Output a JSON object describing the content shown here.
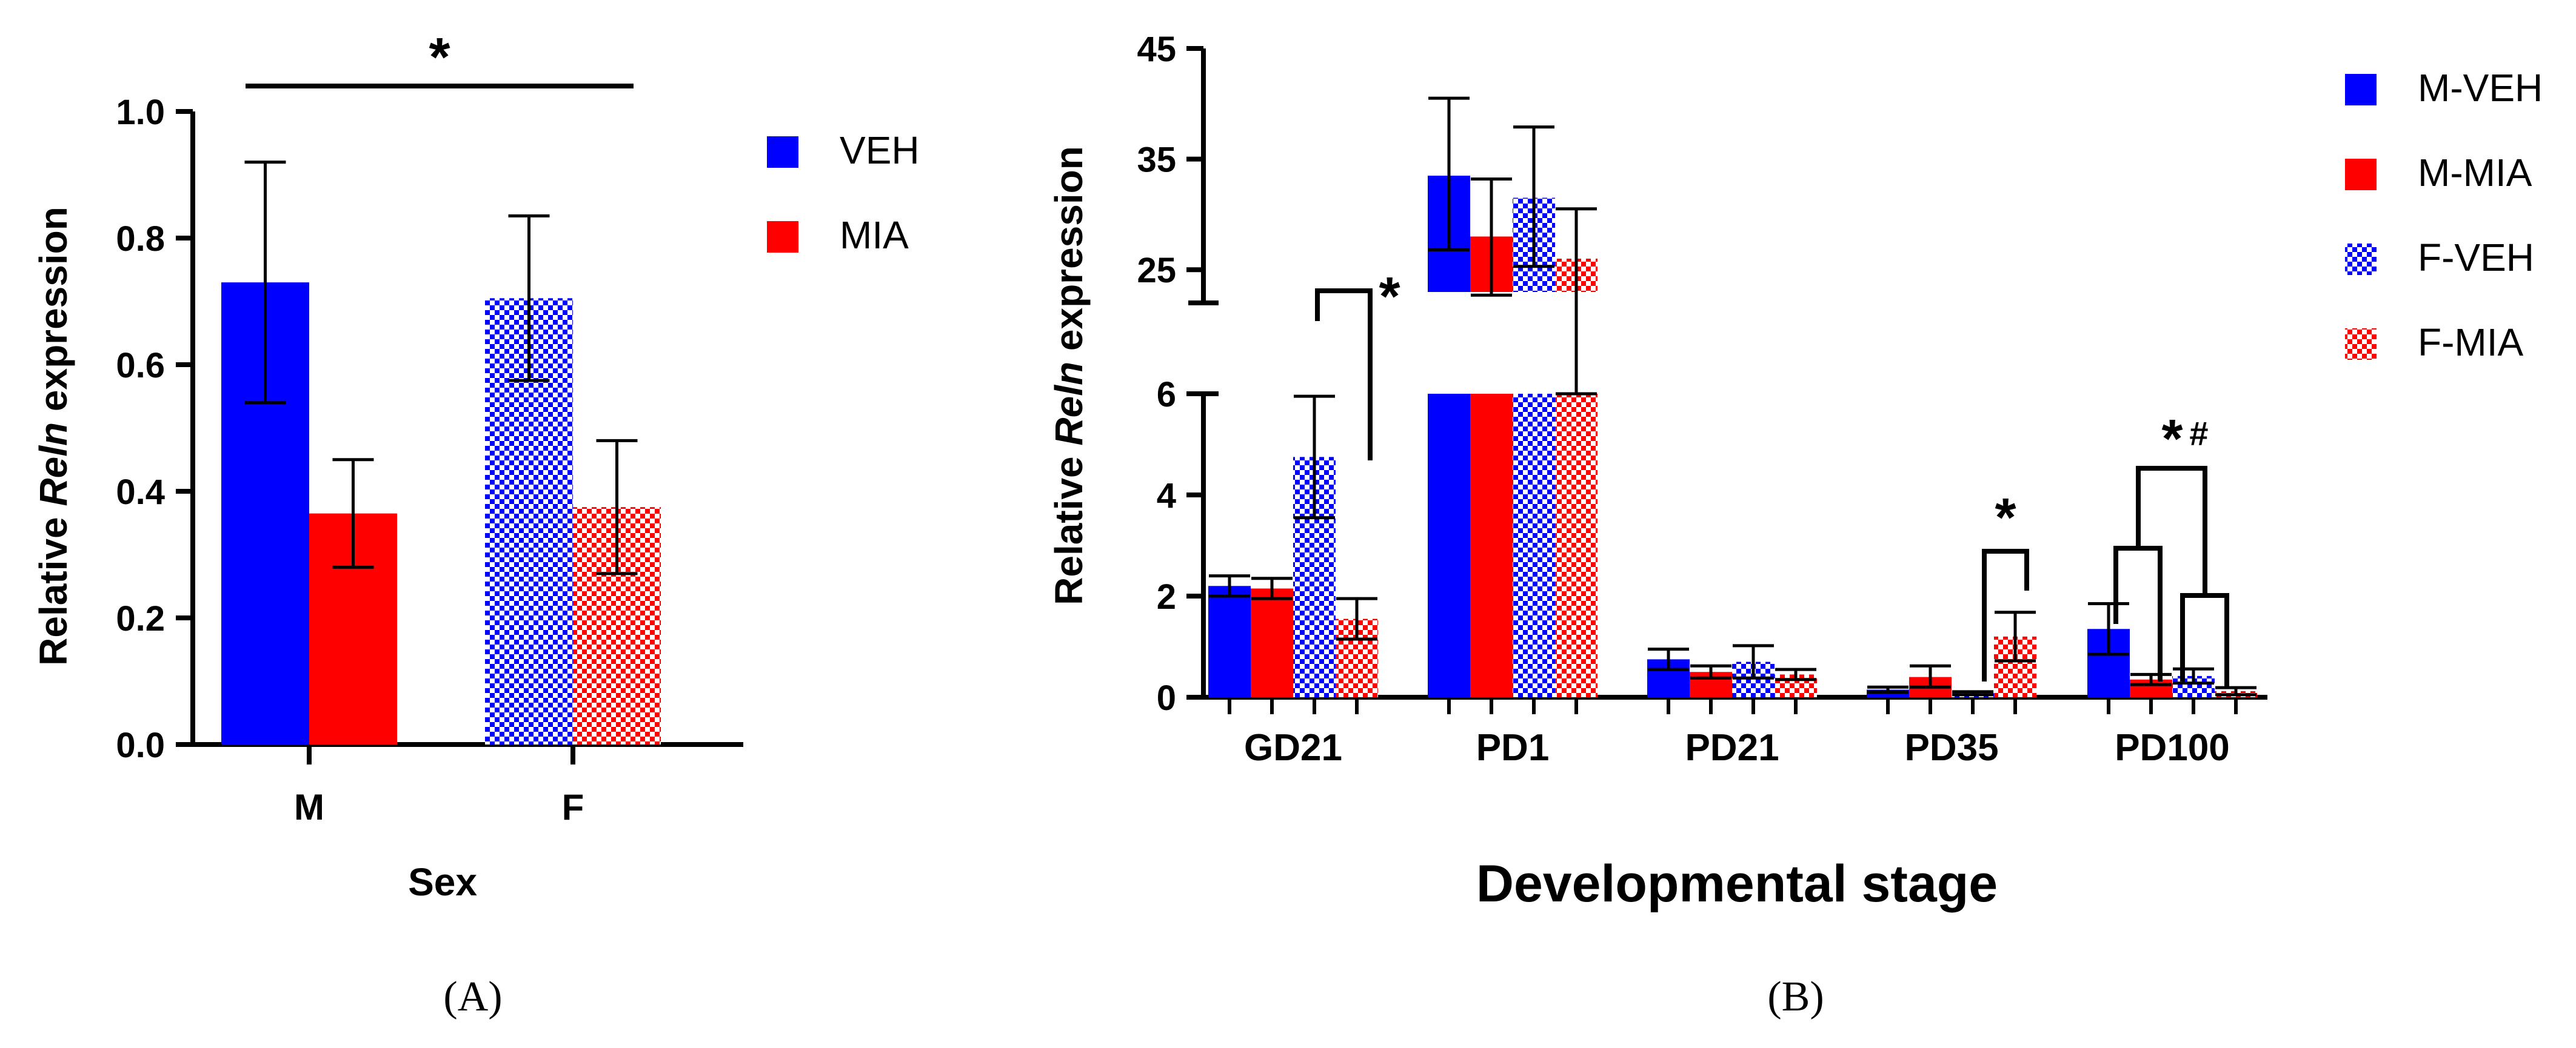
{
  "colors": {
    "blue": "#0000ff",
    "red": "#ff0000",
    "axis": "#000000"
  },
  "chart_data": [
    {
      "panel": "A",
      "panel_label": "(A)",
      "type": "bar",
      "categories": [
        "M",
        "F"
      ],
      "xlabel": "Sex",
      "ylabel_prefix": "Relative ",
      "ylabel_gene": "Reln",
      "ylabel_suffix": " expression",
      "ylim": [
        0,
        1.0
      ],
      "yticks": [
        "0.0",
        "0.2",
        "0.4",
        "0.6",
        "0.8",
        "1.0"
      ],
      "legend": [
        "VEH",
        "MIA"
      ],
      "series": [
        {
          "name": "M-VEH",
          "category": "M",
          "value": 0.73,
          "err": [
            0.54,
            0.92
          ],
          "color": "blue",
          "hatched": false
        },
        {
          "name": "M-MIA",
          "category": "M",
          "value": 0.365,
          "err": [
            0.28,
            0.45
          ],
          "color": "red",
          "hatched": false
        },
        {
          "name": "F-VEH",
          "category": "F",
          "value": 0.705,
          "err": [
            0.575,
            0.835
          ],
          "color": "blue",
          "hatched": true
        },
        {
          "name": "F-MIA",
          "category": "F",
          "value": 0.375,
          "err": [
            0.27,
            0.48
          ],
          "color": "red",
          "hatched": true
        }
      ],
      "annotations": [
        {
          "text": "*",
          "type": "line",
          "spans": "M to F"
        }
      ]
    },
    {
      "panel": "B",
      "panel_label": "(B)",
      "type": "bar",
      "categories": [
        "GD21",
        "PD1",
        "PD21",
        "PD35",
        "PD100"
      ],
      "xlabel": "Developmental stage",
      "ylabel_prefix": "Relative ",
      "ylabel_gene": "Reln",
      "ylabel_suffix": " expression",
      "ylim": [
        0,
        45
      ],
      "axis_break": [
        6,
        22
      ],
      "yticks_lower": [
        "0",
        "2",
        "4",
        "6"
      ],
      "yticks_upper": [
        "25",
        "35",
        "45"
      ],
      "legend": [
        "M-VEH",
        "M-MIA",
        "F-VEH",
        "F-MIA"
      ],
      "series": [
        {
          "name": "M-VEH",
          "color": "blue",
          "hatched": false,
          "values": [
            2.2,
            33.5,
            0.75,
            0.15,
            1.35
          ],
          "err": [
            [
              2.0,
              2.4
            ],
            [
              26.8,
              40.5
            ],
            [
              0.55,
              0.95
            ],
            [
              0.1,
              0.2
            ],
            [
              0.85,
              1.85
            ]
          ]
        },
        {
          "name": "M-MIA",
          "color": "red",
          "hatched": false,
          "values": [
            2.15,
            28.0,
            0.5,
            0.4,
            0.35
          ],
          "err": [
            [
              1.95,
              2.35
            ],
            [
              22.7,
              33.2
            ],
            [
              0.38,
              0.62
            ],
            [
              0.2,
              0.62
            ],
            [
              0.25,
              0.45
            ]
          ]
        },
        {
          "name": "F-VEH",
          "color": "blue",
          "hatched": true,
          "values": [
            4.75,
            31.5,
            0.7,
            0.08,
            0.42
          ],
          "err": [
            [
              3.55,
              5.95
            ],
            [
              25.3,
              37.9
            ],
            [
              0.38,
              1.02
            ],
            [
              0.05,
              0.11
            ],
            [
              0.28,
              0.56
            ]
          ]
        },
        {
          "name": "F-MIA",
          "color": "red",
          "hatched": true,
          "values": [
            1.55,
            26.0,
            0.45,
            1.2,
            0.12
          ],
          "err": [
            [
              1.15,
              1.95
            ],
            [
              21.2,
              30.5
            ],
            [
              0.35,
              0.55
            ],
            [
              0.72,
              1.68
            ],
            [
              0.05,
              0.19
            ]
          ]
        }
      ],
      "annotations": [
        {
          "text": "*",
          "category": "GD21",
          "compares": "F-VEH vs F-MIA"
        },
        {
          "text": "*",
          "category": "PD35",
          "compares": "F-VEH vs F-MIA"
        },
        {
          "text": "*",
          "sub": "#",
          "category": "PD100",
          "compares": "M-VEH,M-MIA vs F-VEH,F-MIA"
        }
      ]
    }
  ]
}
